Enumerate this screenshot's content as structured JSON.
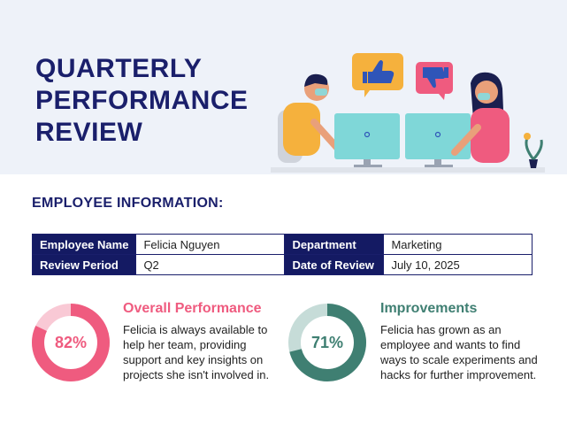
{
  "header": {
    "title_lines": [
      "QUARTERLY",
      "PERFORMANCE",
      "REVIEW"
    ]
  },
  "employee_info": {
    "heading": "EMPLOYEE INFORMATION:",
    "rows": [
      {
        "label_1": "Employee Name",
        "value_1": "Felicia Nguyen",
        "label_2": "Department",
        "value_2": "Marketing"
      },
      {
        "label_1": "Review Period",
        "value_1": "Q2",
        "label_2": "Date of Review",
        "value_2": "July 10, 2025"
      }
    ]
  },
  "overall": {
    "title": "Overall Performance",
    "percent_label": "82%",
    "percent": 82,
    "text_lines": [
      "Felicia is always available to",
      "help her team, providing",
      "support and key insights on",
      "projects she isn't involved in."
    ],
    "colors": {
      "fill": "#ef5b7f",
      "track": "#f9c9d5",
      "title": "#ef5b7f"
    }
  },
  "improvements": {
    "title": "Improvements",
    "percent_label": "71%",
    "percent": 71,
    "text_lines": [
      "Felicia has grown as an",
      "employee and wants to find",
      "ways to scale experiments and",
      "hacks for further improvement."
    ],
    "colors": {
      "fill": "#3f7f72",
      "track": "#c6dcd8",
      "title": "#3f7f72"
    }
  },
  "illustration": {
    "icons": [
      "thumbs-up-icon",
      "thumbs-down-icon"
    ]
  },
  "colors": {
    "navy": "#1a1f6b",
    "banner": "#eef2f9"
  }
}
